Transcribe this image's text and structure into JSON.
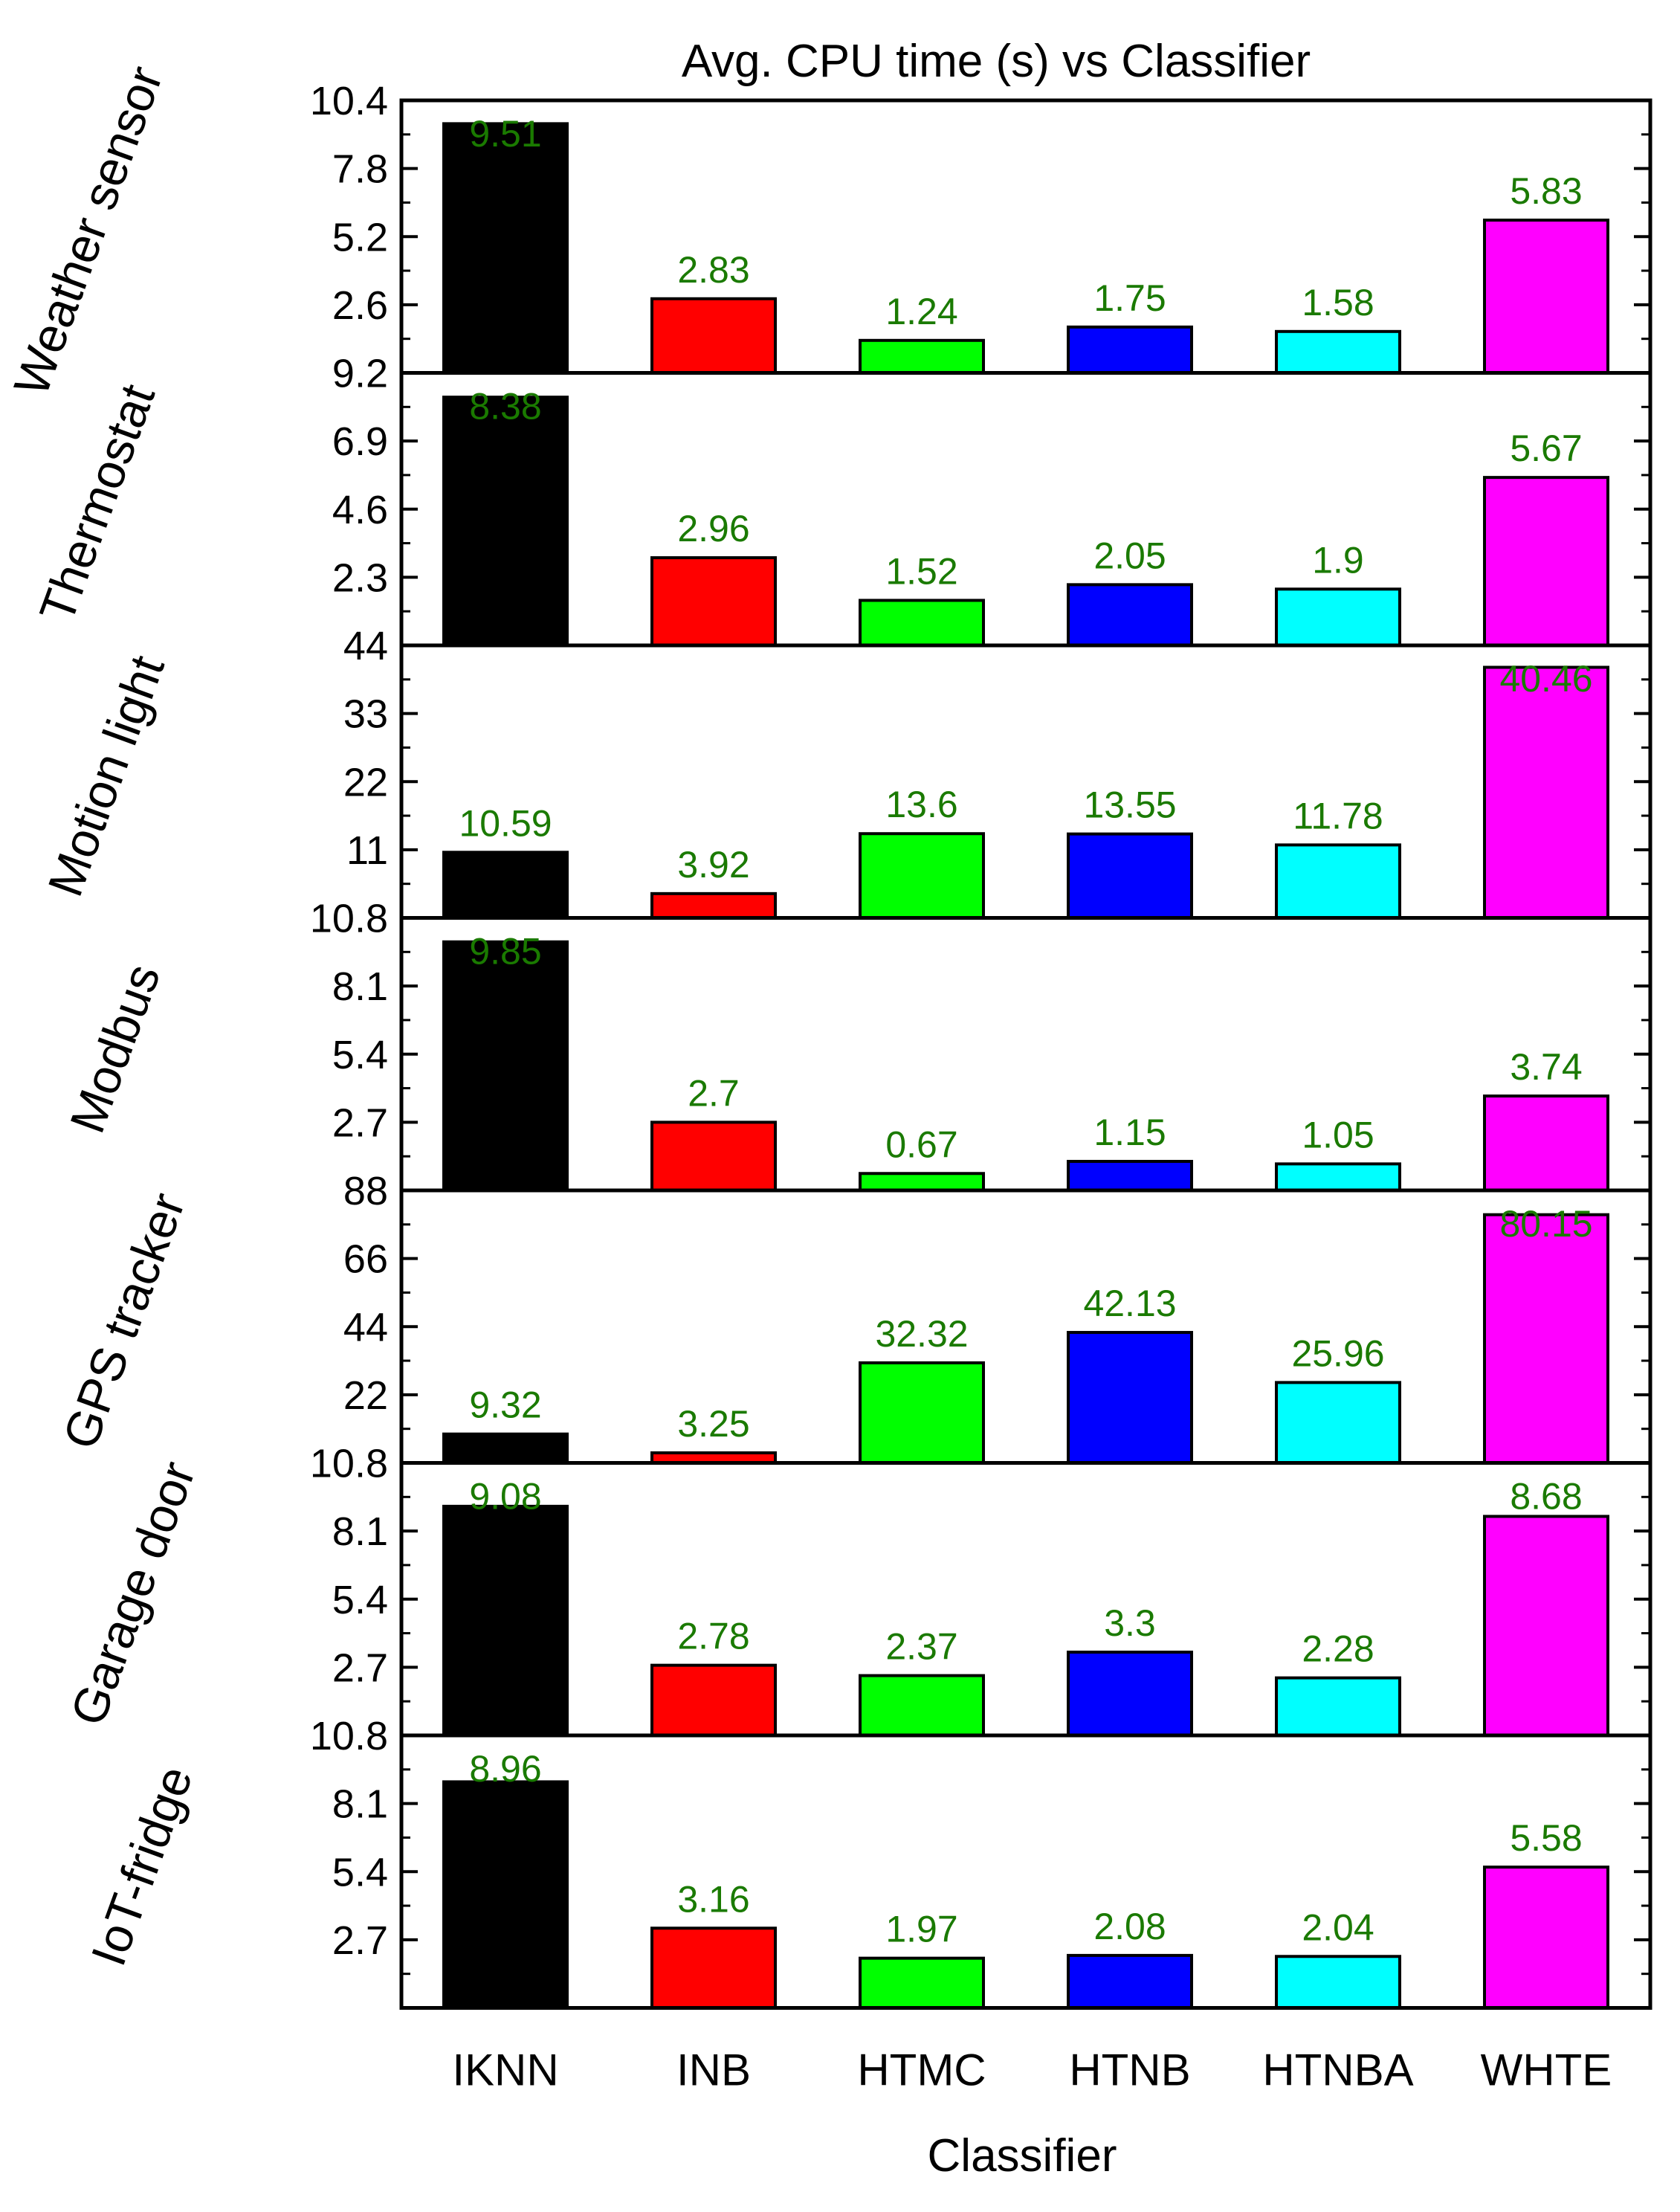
{
  "chart_data": {
    "type": "bar",
    "title": "Avg. CPU time (s) vs Classifier",
    "xlabel": "Classifier",
    "categories": [
      "IKNN",
      "INB",
      "HTMC",
      "HTNB",
      "HTNBA",
      "WHTE"
    ],
    "colors": [
      "#000000",
      "#ff0000",
      "#00ff00",
      "#0000ff",
      "#00ffff",
      "#ff00ff"
    ],
    "label_color": "#1a7a00",
    "grid": false,
    "panels": [
      {
        "name": "Weather sensor",
        "values": [
          9.51,
          2.83,
          1.24,
          1.75,
          1.58,
          5.83
        ],
        "value_labels": [
          "9.51",
          "2.83",
          "1.24",
          "1.75",
          "1.58",
          "5.83"
        ],
        "ylim": [
          0,
          10.4
        ],
        "ticks": [
          2.6,
          5.2,
          7.8,
          10.4
        ],
        "tick_labels": [
          "2.6",
          "5.2",
          "7.8",
          "10.4"
        ]
      },
      {
        "name": "Thermostat",
        "values": [
          8.38,
          2.96,
          1.52,
          2.05,
          1.9,
          5.67
        ],
        "value_labels": [
          "8.38",
          "2.96",
          "1.52",
          "2.05",
          "1.9",
          "5.67"
        ],
        "ylim": [
          0,
          9.2
        ],
        "ticks": [
          2.3,
          4.6,
          6.9,
          9.2
        ],
        "tick_labels": [
          "2.3",
          "4.6",
          "6.9",
          "9.2"
        ]
      },
      {
        "name": "Motion light",
        "values": [
          10.59,
          3.92,
          13.6,
          13.55,
          11.78,
          40.46
        ],
        "value_labels": [
          "10.59",
          "3.92",
          "13.6",
          "13.55",
          "11.78",
          "40.46"
        ],
        "ylim": [
          0,
          44
        ],
        "ticks": [
          11,
          22,
          33,
          44
        ],
        "tick_labels": [
          "11",
          "22",
          "33",
          "44"
        ]
      },
      {
        "name": "Modbus",
        "values": [
          9.85,
          2.7,
          0.67,
          1.15,
          1.05,
          3.74
        ],
        "value_labels": [
          "9.85",
          "2.7",
          "0.67",
          "1.15",
          "1.05",
          "3.74"
        ],
        "ylim": [
          0,
          10.8
        ],
        "ticks": [
          2.7,
          5.4,
          8.1,
          10.8
        ],
        "tick_labels": [
          "2.7",
          "5.4",
          "8.1",
          "10.8"
        ]
      },
      {
        "name": "GPS tracker",
        "values": [
          9.32,
          3.25,
          32.32,
          42.13,
          25.96,
          80.15
        ],
        "value_labels": [
          "9.32",
          "3.25",
          "32.32",
          "42.13",
          "25.96",
          "80.15"
        ],
        "ylim": [
          0,
          88
        ],
        "ticks": [
          22,
          44,
          66,
          88
        ],
        "tick_labels": [
          "22",
          "44",
          "66",
          "88"
        ]
      },
      {
        "name": "Garage door",
        "values": [
          9.08,
          2.78,
          2.37,
          3.3,
          2.28,
          8.68
        ],
        "value_labels": [
          "9.08",
          "2.78",
          "2.37",
          "3.3",
          "2.28",
          "8.68"
        ],
        "ylim": [
          0,
          10.8
        ],
        "ticks": [
          2.7,
          5.4,
          8.1,
          10.8
        ],
        "tick_labels": [
          "2.7",
          "5.4",
          "8.1",
          "10.8"
        ]
      },
      {
        "name": "IoT-fridge",
        "values": [
          8.96,
          3.16,
          1.97,
          2.08,
          2.04,
          5.58
        ],
        "value_labels": [
          "8.96",
          "3.16",
          "1.97",
          "2.08",
          "2.04",
          "5.58"
        ],
        "ylim": [
          0,
          10.8
        ],
        "ticks": [
          2.7,
          5.4,
          8.1,
          10.8
        ],
        "tick_labels": [
          "2.7",
          "5.4",
          "8.1",
          "10.8"
        ]
      }
    ]
  }
}
